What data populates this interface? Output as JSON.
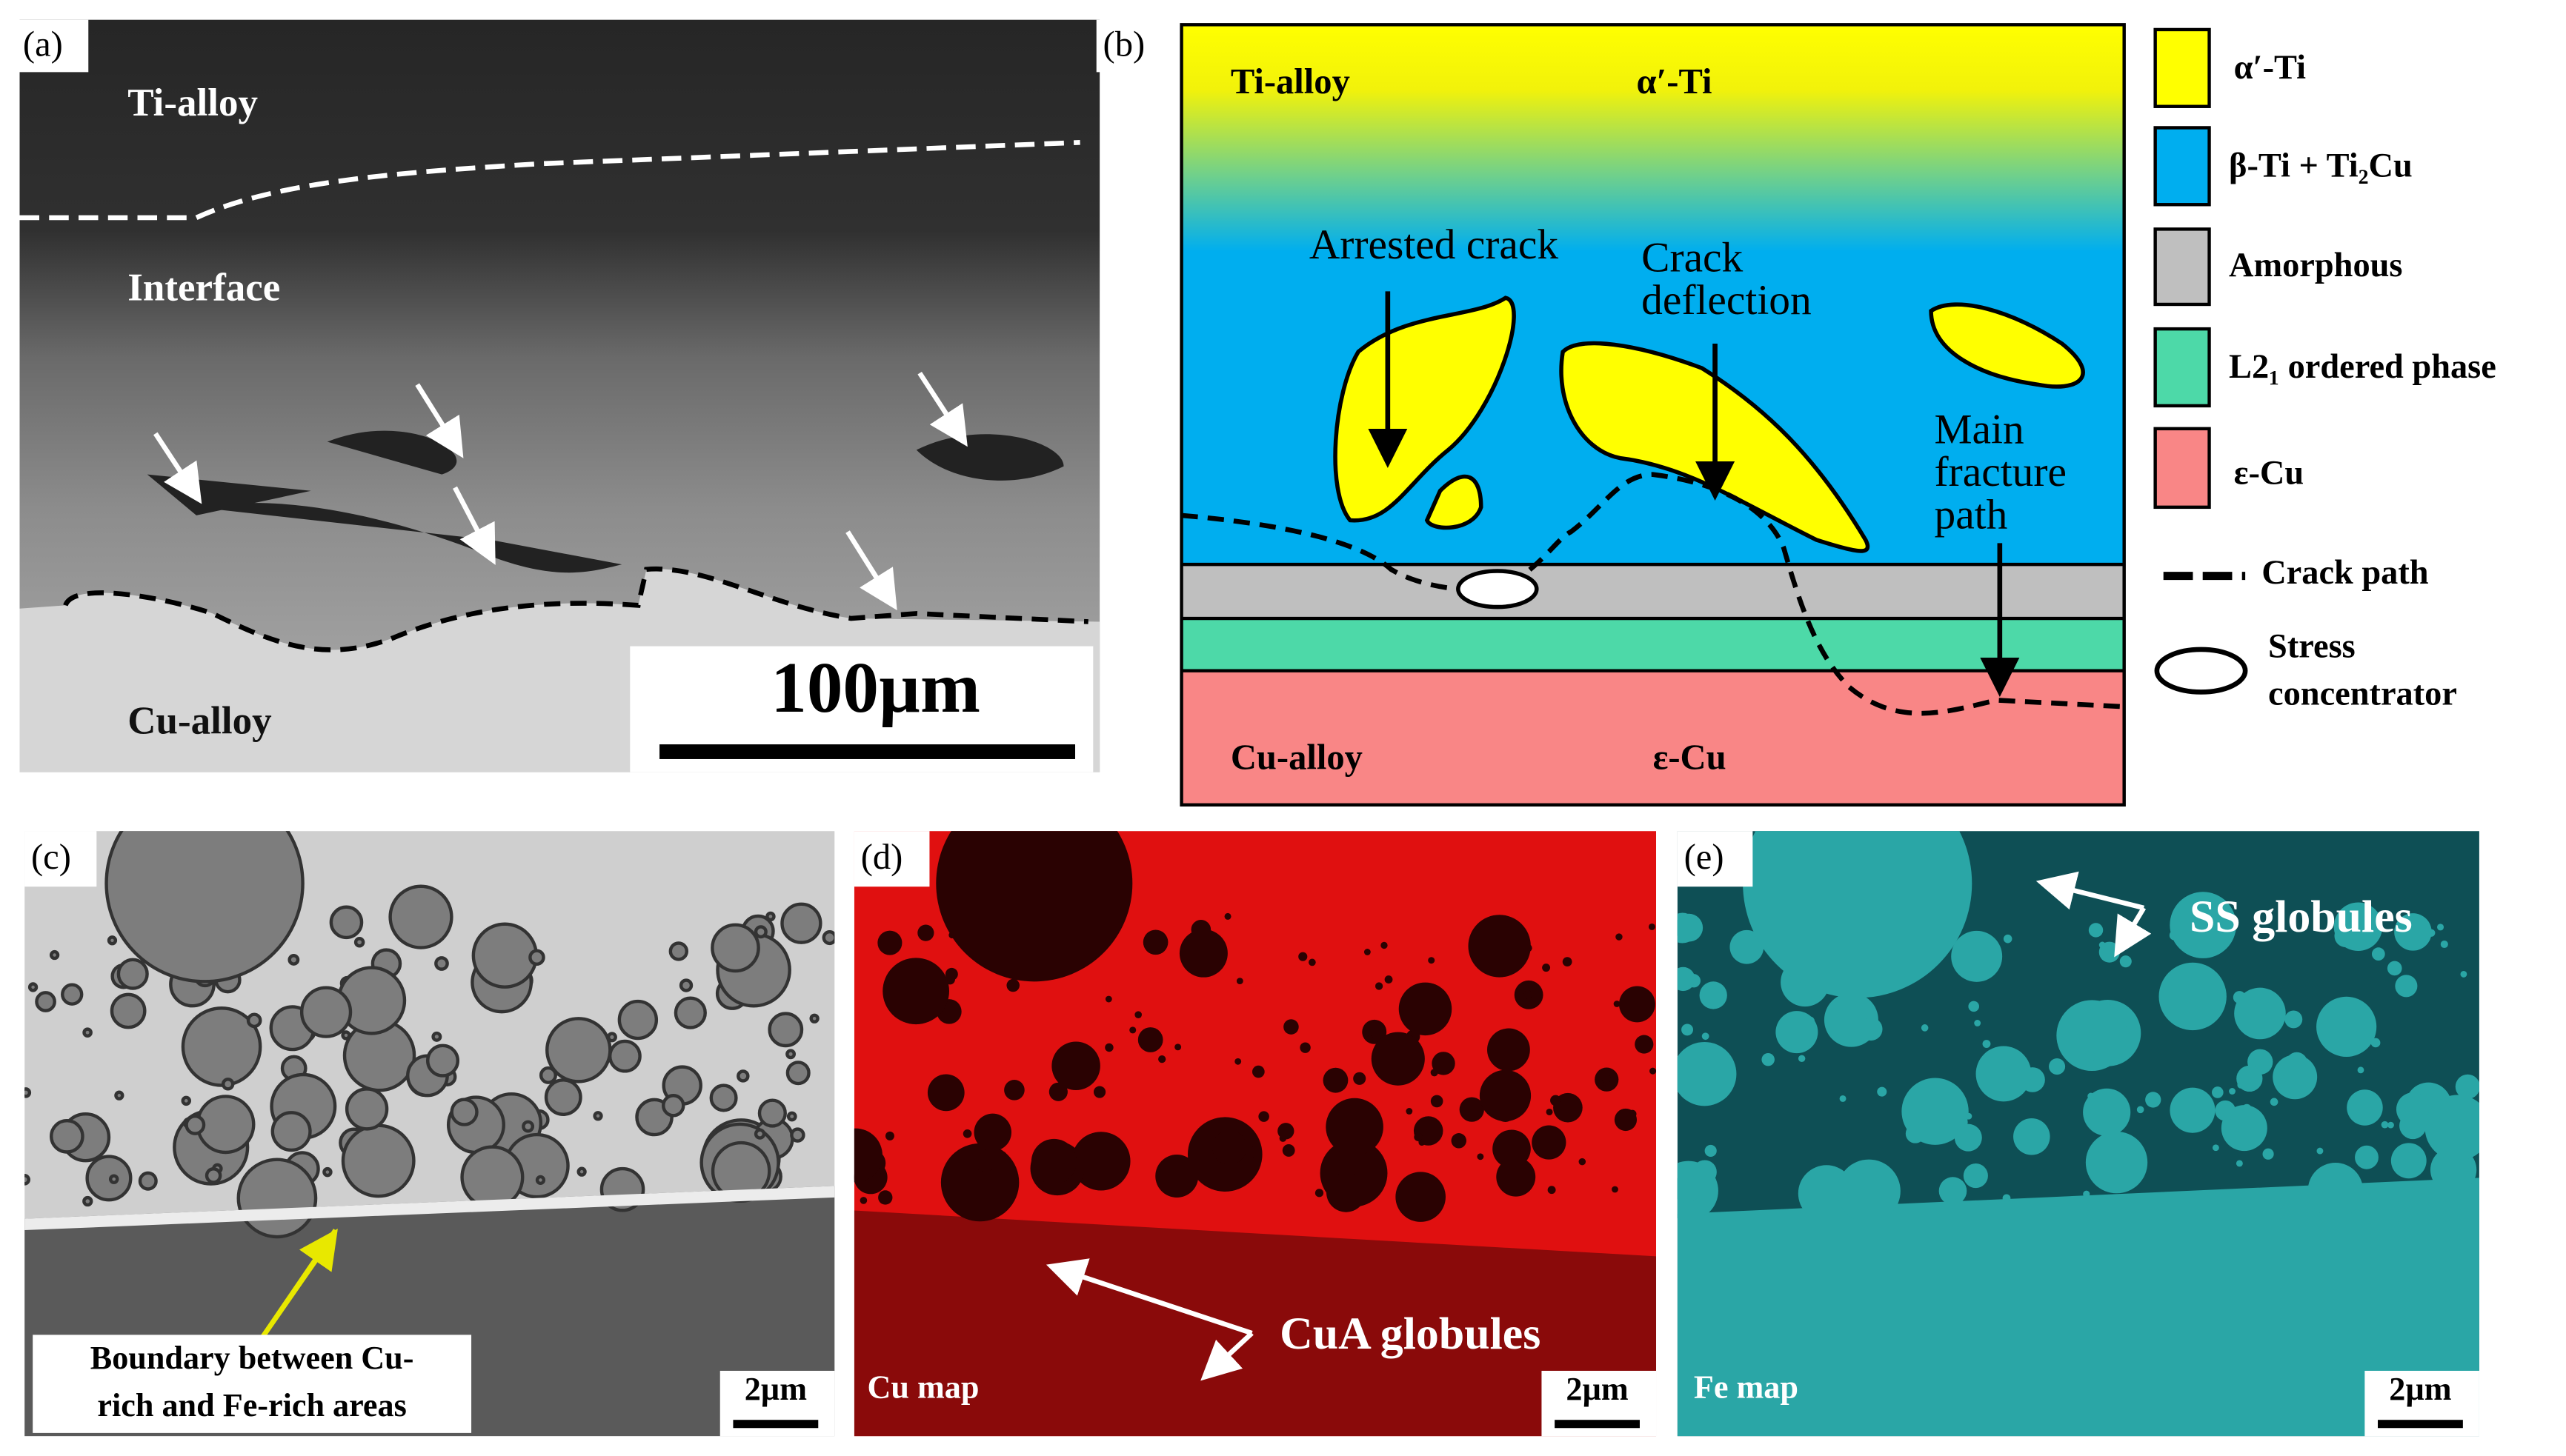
{
  "panels": {
    "a": {
      "label": "(a)",
      "top": "Ti-alloy",
      "middle": "Interface",
      "bottom": "Cu-alloy",
      "scale_bar": "100µm"
    },
    "b": {
      "label": "(b)",
      "top_left": "Ti-alloy",
      "top_phase": "α′-Ti",
      "arrested": "Arrested crack",
      "deflection": [
        "Crack",
        "deflection"
      ],
      "main_path": [
        "Main",
        "fracture",
        "path"
      ],
      "bottom_left": "Cu-alloy",
      "bottom_phase": "ε-Cu",
      "legend": [
        "α′-Ti",
        "β-Ti + Ti₂Cu",
        "Amorphous",
        "L2₁ ordered phase",
        "ε-Cu",
        "Crack path"
      ],
      "stress": [
        "Stress",
        "concentrator"
      ]
    },
    "c": {
      "label": "(c)",
      "note": [
        "Boundary between Cu-",
        "rich and Fe-rich areas"
      ],
      "scale_bar": "2µm"
    },
    "d": {
      "label": "(d)",
      "map": "Cu map",
      "note": "CuA globules",
      "scale_bar": "2µm"
    },
    "e": {
      "label": "(e)",
      "map": "Fe map",
      "note": "SS globules",
      "scale_bar": "2µm"
    }
  }
}
